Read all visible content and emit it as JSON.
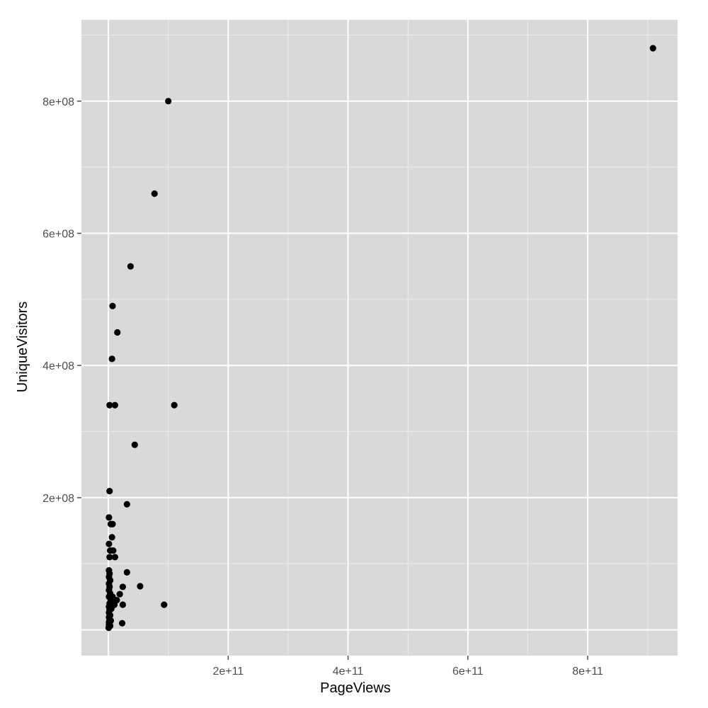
{
  "chart_data": {
    "type": "scatter",
    "title": "",
    "xlabel": "PageViews",
    "ylabel": "UniqueVisitors",
    "xlim": [
      -45000000000.0,
      950000000000.0
    ],
    "ylim": [
      -39000000.0,
      923000000.0
    ],
    "x_ticks": [
      200000000000.0,
      400000000000.0,
      600000000000.0,
      800000000000.0
    ],
    "x_tick_labels": [
      "2e+11",
      "4e+11",
      "6e+11",
      "8e+11"
    ],
    "y_ticks": [
      200000000.0,
      400000000.0,
      600000000.0,
      800000000.0
    ],
    "y_tick_labels": [
      "2e+08",
      "4e+08",
      "6e+08",
      "8e+08"
    ],
    "grid": true,
    "legend": "none",
    "panel_background": "#d9d9d9",
    "grid_major_color": "#ffffff",
    "grid_minor_color": "#ebebeb",
    "point_color": "#000000",
    "points": [
      {
        "x": 909000000000.0,
        "y": 880000000.0
      },
      {
        "x": 100000000000.0,
        "y": 800000000.0
      },
      {
        "x": 77000000000.0,
        "y": 660000000.0
      },
      {
        "x": 37000000000.0,
        "y": 550000000.0
      },
      {
        "x": 7000000000.0,
        "y": 490000000.0
      },
      {
        "x": 15000000000.0,
        "y": 450000000.0
      },
      {
        "x": 6000000000.0,
        "y": 410000000.0
      },
      {
        "x": 2000000000.0,
        "y": 340000000.0
      },
      {
        "x": 11000000000.0,
        "y": 340000000.0
      },
      {
        "x": 110000000000.0,
        "y": 340000000.0
      },
      {
        "x": 44000000000.0,
        "y": 280000000.0
      },
      {
        "x": 2000000000.0,
        "y": 210000000.0
      },
      {
        "x": 31000000000.0,
        "y": 190000000.0
      },
      {
        "x": 1000000000.0,
        "y": 170000000.0
      },
      {
        "x": 4000000000.0,
        "y": 160000000.0
      },
      {
        "x": 7000000000.0,
        "y": 160000000.0
      },
      {
        "x": 6000000000.0,
        "y": 140000000.0
      },
      {
        "x": 1000000000.0,
        "y": 130000000.0
      },
      {
        "x": 3000000000.0,
        "y": 120000000.0
      },
      {
        "x": 8000000000.0,
        "y": 120000000.0
      },
      {
        "x": 2000000000.0,
        "y": 110000000.0
      },
      {
        "x": 11000000000.0,
        "y": 110000000.0
      },
      {
        "x": 31000000000.0,
        "y": 87000000.0
      },
      {
        "x": 53000000000.0,
        "y": 66000000.0
      },
      {
        "x": 93000000000.0,
        "y": 38000000.0
      },
      {
        "x": 24000000000.0,
        "y": 65000000.0
      },
      {
        "x": 19000000000.0,
        "y": 54000000.0
      },
      {
        "x": 14000000000.0,
        "y": 45000000.0
      },
      {
        "x": 24000000000.0,
        "y": 38000000.0
      },
      {
        "x": 23000000000.0,
        "y": 10000000.0
      },
      {
        "x": 10000000000.0,
        "y": 38000000.0
      },
      {
        "x": 7000000000.0,
        "y": 50000000.0
      },
      {
        "x": 1000000000.0,
        "y": 90000000.0
      },
      {
        "x": 2000000000.0,
        "y": 85000000.0
      },
      {
        "x": 1000000000.0,
        "y": 80000000.0
      },
      {
        "x": 3000000000.0,
        "y": 75000000.0
      },
      {
        "x": 1000000000.0,
        "y": 70000000.0
      },
      {
        "x": 2000000000.0,
        "y": 65000000.0
      },
      {
        "x": 1000000000.0,
        "y": 60000000.0
      },
      {
        "x": 3000000000.0,
        "y": 55000000.0
      },
      {
        "x": 1000000000.0,
        "y": 50000000.0
      },
      {
        "x": 4000000000.0,
        "y": 45000000.0
      },
      {
        "x": 2000000000.0,
        "y": 40000000.0
      },
      {
        "x": 1000000000.0,
        "y": 35000000.0
      },
      {
        "x": 5000000000.0,
        "y": 32000000.0
      },
      {
        "x": 2000000000.0,
        "y": 30000000.0
      },
      {
        "x": 1000000000.0,
        "y": 26000000.0
      },
      {
        "x": 3000000000.0,
        "y": 22000000.0
      },
      {
        "x": 1000000000.0,
        "y": 19000000.0
      },
      {
        "x": 2000000000.0,
        "y": 16000000.0
      },
      {
        "x": 4000000000.0,
        "y": 14000000.0
      },
      {
        "x": 1000000000.0,
        "y": 12000000.0
      },
      {
        "x": 2000000000.0,
        "y": 10000000.0
      },
      {
        "x": 1000000000.0,
        "y": 8000000.0
      },
      {
        "x": 3000000000.0,
        "y": 6000000.0
      },
      {
        "x": 1000000000.0,
        "y": 5000000.0
      },
      {
        "x": 500000000.0,
        "y": 3000000.0
      }
    ]
  }
}
